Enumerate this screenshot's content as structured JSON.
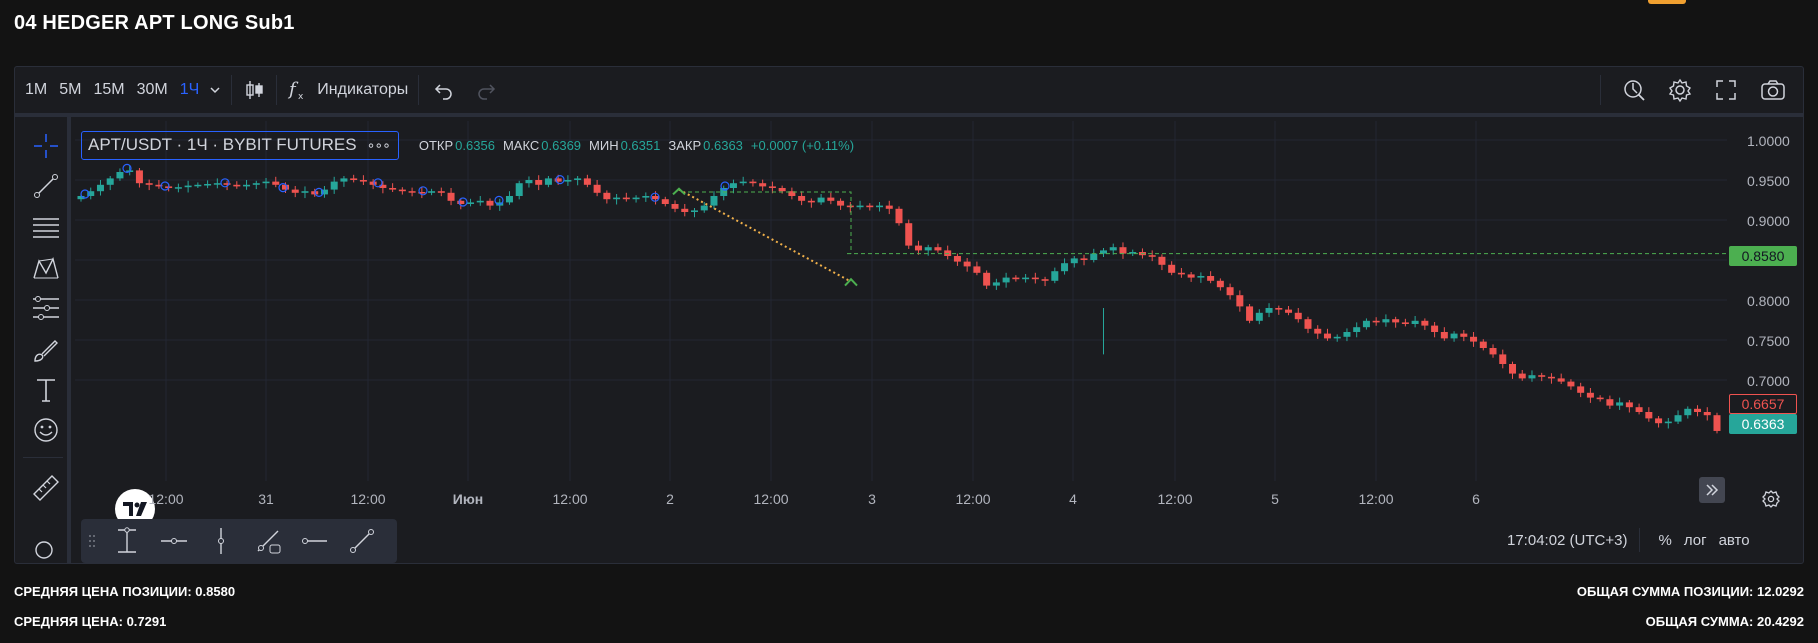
{
  "page": {
    "title": "04 HEDGER APT LONG Sub1"
  },
  "toolbar": {
    "intervals": [
      "1М",
      "5М",
      "15М",
      "30М",
      "1Ч"
    ],
    "active_interval": "1Ч",
    "indicators_label": "Индикаторы"
  },
  "legend": {
    "symbol": "APT/USDT · 1Ч · BYBIT FUTURES",
    "more": "∘∘∘",
    "open_label": "ОТКР",
    "open": "0.6356",
    "high_label": "МАКС",
    "high": "0.6369",
    "low_label": "МИН",
    "low": "0.6351",
    "close_label": "ЗАКР",
    "close": "0.6363",
    "change": "+0.0007 (+0.11%)"
  },
  "chart_data": {
    "type": "candlestick",
    "symbol": "APT/USDT",
    "interval": "1Ч",
    "exchange": "BYBIT FUTURES",
    "ylim": [
      0.62,
      1.02
    ],
    "y_ticks": [
      "1.0000",
      "0.9500",
      "0.9000",
      "0.8500",
      "0.8000",
      "0.7500",
      "0.7000"
    ],
    "x_ticks": [
      "12:00",
      "31",
      "12:00",
      "Июн",
      "12:00",
      "2",
      "12:00",
      "3",
      "12:00",
      "4",
      "12:00",
      "5",
      "12:00",
      "6"
    ],
    "close_path": [
      0.93,
      0.936,
      0.944,
      0.952,
      0.96,
      0.962,
      0.946,
      0.944,
      0.942,
      0.94,
      0.941,
      0.943,
      0.944,
      0.945,
      0.946,
      0.944,
      0.942,
      0.944,
      0.946,
      0.948,
      0.944,
      0.938,
      0.934,
      0.936,
      0.932,
      0.938,
      0.948,
      0.952,
      0.95,
      0.948,
      0.944,
      0.94,
      0.938,
      0.936,
      0.935,
      0.934,
      0.936,
      0.934,
      0.924,
      0.92,
      0.922,
      0.924,
      0.918,
      0.922,
      0.93,
      0.946,
      0.95,
      0.944,
      0.952,
      0.948,
      0.95,
      0.952,
      0.944,
      0.934,
      0.926,
      0.928,
      0.926,
      0.928,
      0.93,
      0.926,
      0.92,
      0.914,
      0.91,
      0.912,
      0.918,
      0.93,
      0.94,
      0.946,
      0.948,
      0.946,
      0.942,
      0.94,
      0.936,
      0.93,
      0.924,
      0.922,
      0.928,
      0.924,
      0.918,
      0.916,
      0.918,
      0.916,
      0.918,
      0.914,
      0.896,
      0.868,
      0.862,
      0.866,
      0.862,
      0.855,
      0.848,
      0.842,
      0.834,
      0.818,
      0.822,
      0.828,
      0.826,
      0.828,
      0.826,
      0.824,
      0.836,
      0.846,
      0.852,
      0.85,
      0.858,
      0.862,
      0.866,
      0.858,
      0.86,
      0.856,
      0.854,
      0.844,
      0.834,
      0.832,
      0.828,
      0.83,
      0.824,
      0.816,
      0.806,
      0.792,
      0.774,
      0.784,
      0.79,
      0.788,
      0.784,
      0.776,
      0.764,
      0.758,
      0.752,
      0.754,
      0.76,
      0.766,
      0.774,
      0.772,
      0.776,
      0.772,
      0.77,
      0.774,
      0.768,
      0.76,
      0.752,
      0.758,
      0.754,
      0.748,
      0.74,
      0.732,
      0.72,
      0.708,
      0.702,
      0.706,
      0.704,
      0.702,
      0.698,
      0.692,
      0.684,
      0.678,
      0.676,
      0.668,
      0.672,
      0.666,
      0.66,
      0.652,
      0.646,
      0.648,
      0.656,
      0.664,
      0.66,
      0.656,
      0.6363
    ],
    "avg_position_price": 0.858,
    "price_labels": {
      "entry": "0.8580",
      "red": "0.6657",
      "last": "0.6363"
    },
    "colors": {
      "up": "#26a69a",
      "down": "#ef5350",
      "background": "#1b1c20",
      "grid": "#232632",
      "entry_line": "#4caf50",
      "projection": "#f0b04a"
    }
  },
  "status": {
    "time": "17:04:02 (UTC+3)",
    "percent": "%",
    "log": "лог",
    "auto": "авто"
  },
  "stats": {
    "avg_position_label": "СРЕДНЯЯ ЦЕНА ПОЗИЦИИ: 0.8580",
    "avg_price_label": "СРЕДНЯЯ ЦЕНА: 0.7291",
    "total_position_label": "ОБЩАЯ СУММА ПОЗИЦИИ: 12.0292",
    "total_sum_label": "ОБЩАЯ СУММА: 20.4292"
  },
  "icons": {
    "left": [
      "crosshair-icon",
      "trend-line-icon",
      "horizontal-lines-icon",
      "pattern-icon",
      "fib-icon",
      "brush-icon",
      "text-icon",
      "emoji-icon",
      "ruler-icon"
    ],
    "right": [
      "replay-icon",
      "settings-icon",
      "fullscreen-icon",
      "snapshot-icon"
    ]
  }
}
